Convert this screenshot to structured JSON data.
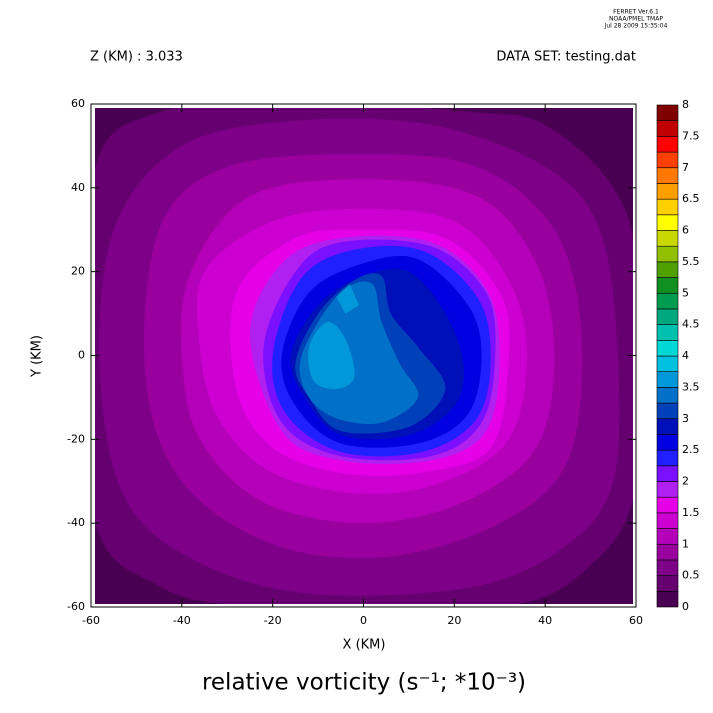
{
  "chart_data": {
    "type": "contour",
    "header": [
      "FERRET  Ver.6.1",
      "NOAA/PMEL TMAP",
      "Jul 28 2009 15:35:04"
    ],
    "subtitle_left": "Z (KM) : 3.033",
    "subtitle_right": "DATA SET: testing.dat",
    "title": "relative vorticity (s⁻¹; *10⁻³)",
    "xlabel": "X (KM)",
    "ylabel": "Y (KM)",
    "xlim": [
      -60,
      60
    ],
    "ylim": [
      -60,
      60
    ],
    "xticks": [
      -60,
      -40,
      -20,
      0,
      20,
      40,
      60
    ],
    "yticks": [
      -60,
      -40,
      -20,
      0,
      20,
      40,
      60
    ],
    "levels": [
      0,
      0.25,
      0.5,
      0.75,
      1,
      1.25,
      1.5,
      1.75,
      2,
      2.25,
      2.5,
      2.75,
      3,
      3.25,
      3.5,
      3.75,
      4,
      4.25,
      4.5,
      4.75,
      5,
      5.25,
      5.5,
      5.75,
      6,
      6.25,
      6.5,
      6.75,
      7,
      7.25,
      7.5,
      7.75,
      8
    ],
    "colors": [
      "#4a0052",
      "#660070",
      "#7e0088",
      "#9a009e",
      "#b400b8",
      "#cc00d0",
      "#e600e8",
      "#b020f0",
      "#7a10ff",
      "#2020ff",
      "#0000e0",
      "#0010b8",
      "#0040b8",
      "#0070c8",
      "#0098d8",
      "#00c0e0",
      "#00d8d8",
      "#00c0b0",
      "#00a880",
      "#009c50",
      "#109020",
      "#50a000",
      "#90c000",
      "#c8d800",
      "#ffff00",
      "#ffd000",
      "#ffa000",
      "#ff7800",
      "#ff4000",
      "#ff0000",
      "#c00000",
      "#800000"
    ],
    "colorbar_ticks": [
      0,
      0.5,
      1,
      1.5,
      2,
      2.5,
      3,
      3.5,
      4,
      4.5,
      5,
      5.5,
      6,
      6.5,
      7,
      7.5,
      8
    ],
    "contours": [
      {
        "level": 0,
        "x": [
          -60,
          60,
          60,
          -60
        ],
        "y": [
          60,
          60,
          -60,
          -60
        ]
      },
      {
        "level": 0.25,
        "x": [
          -60,
          -45,
          -10,
          25,
          40,
          55,
          60,
          60,
          50,
          30,
          -20,
          -45,
          -60
        ],
        "y": [
          40,
          58,
          60,
          58,
          55,
          40,
          20,
          -30,
          -50,
          -60,
          -60,
          -55,
          -35
        ]
      },
      {
        "level": 0.5,
        "x": [
          -55,
          -40,
          -15,
          15,
          40,
          52,
          56,
          55,
          45,
          25,
          -10,
          -35,
          -52,
          -58
        ],
        "y": [
          30,
          50,
          56,
          55,
          45,
          30,
          0,
          -30,
          -45,
          -55,
          -57,
          -50,
          -35,
          -5
        ]
      },
      {
        "level": 0.75,
        "x": [
          -45,
          -30,
          0,
          25,
          42,
          48,
          45,
          30,
          5,
          -20,
          -40,
          -48
        ],
        "y": [
          30,
          45,
          48,
          45,
          30,
          5,
          -25,
          -40,
          -48,
          -45,
          -30,
          -5
        ]
      },
      {
        "level": 1,
        "x": [
          -38,
          -25,
          0,
          25,
          38,
          42,
          38,
          22,
          0,
          -22,
          -36,
          -40
        ],
        "y": [
          20,
          38,
          42,
          38,
          22,
          0,
          -22,
          -35,
          -40,
          -35,
          -20,
          0
        ]
      },
      {
        "level": 1.25,
        "x": [
          -35,
          -20,
          0,
          20,
          32,
          36,
          32,
          18,
          0,
          -20,
          -32,
          -36
        ],
        "y": [
          20,
          32,
          35,
          32,
          18,
          0,
          -20,
          -30,
          -33,
          -28,
          -15,
          2
        ]
      },
      {
        "level": 1.5,
        "x": [
          -28,
          -15,
          0,
          18,
          30,
          32,
          28,
          12,
          -5,
          -20,
          -28
        ],
        "y": [
          15,
          28,
          30,
          28,
          15,
          0,
          -22,
          -28,
          -28,
          -22,
          -8
        ]
      },
      {
        "level": 1.75,
        "x": [
          -25,
          -18,
          -5,
          15,
          27,
          30,
          27,
          15,
          -5,
          -18
        ],
        "y": [
          5,
          22,
          28,
          27,
          16,
          0,
          -18,
          -25,
          -25,
          -18
        ]
      },
      {
        "level": 2,
        "x": [
          -22,
          -15,
          -5,
          15,
          27,
          29,
          26,
          15,
          -5,
          -18
        ],
        "y": [
          2,
          20,
          27,
          26,
          15,
          0,
          -16,
          -24,
          -24,
          -16
        ]
      },
      {
        "level": 2.25,
        "x": [
          -20,
          -14,
          -3,
          13,
          25,
          28,
          25,
          13,
          -5,
          -17
        ],
        "y": [
          0,
          18,
          25,
          25,
          14,
          0,
          -15,
          -23,
          -23,
          -14
        ]
      },
      {
        "level": 2.5,
        "x": [
          -18,
          -12,
          0,
          12,
          23,
          26,
          23,
          12,
          -5,
          -15
        ],
        "y": [
          0,
          15,
          22,
          23,
          12,
          0,
          -14,
          -21,
          -21,
          -12
        ]
      },
      {
        "level": 2.75,
        "x": [
          -16,
          -10,
          0,
          10,
          18,
          22,
          20,
          10,
          -5,
          -13
        ],
        "y": [
          0,
          12,
          19,
          20,
          10,
          -2,
          -12,
          -19,
          -19,
          -10
        ]
      },
      {
        "level": 3,
        "x": [
          -15,
          -10,
          -2,
          4,
          6,
          12,
          18,
          10,
          -5,
          -12
        ],
        "y": [
          -2,
          10,
          18,
          19,
          10,
          2,
          -8,
          -17,
          -18,
          -10
        ]
      },
      {
        "level": 3.25,
        "x": [
          -14,
          -10,
          -4,
          2,
          4,
          8,
          12,
          4,
          -6,
          -12
        ],
        "y": [
          -2,
          8,
          16,
          17,
          8,
          -2,
          -10,
          -16,
          -15,
          -10
        ]
      },
      {
        "level": 3.5,
        "x": [
          -12,
          -8,
          -4,
          -2,
          -6,
          -11
        ],
        "y": [
          2,
          8,
          4,
          -5,
          -8,
          -6
        ]
      },
      {
        "level": 3.5,
        "x": [
          -6,
          -3,
          -1,
          -4
        ],
        "y": [
          14,
          17,
          12,
          10
        ]
      }
    ]
  }
}
